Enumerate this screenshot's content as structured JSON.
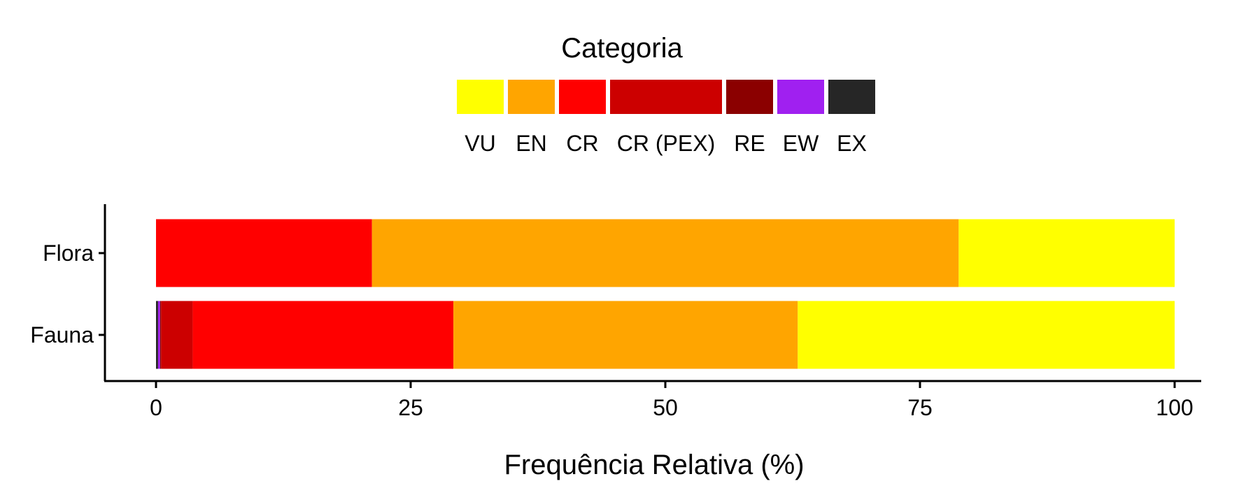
{
  "chart_data": {
    "type": "bar",
    "orientation": "horizontal",
    "stacked": true,
    "xlabel": "Frequência Relativa (%)",
    "ylabel": "",
    "xlim": [
      -5,
      103
    ],
    "xticks": [
      0,
      25,
      50,
      75,
      100
    ],
    "grid": false,
    "legend": {
      "title": "Categoria",
      "placement": "top-center"
    },
    "categories": [
      "Fauna",
      "Flora"
    ],
    "series": [
      {
        "name": "VU",
        "color": "#FFFF00",
        "values": [
          37.0,
          21.2
        ]
      },
      {
        "name": "EN",
        "color": "#FFA500",
        "values": [
          33.8,
          57.6
        ]
      },
      {
        "name": "CR",
        "color": "#FF0000",
        "values": [
          25.6,
          21.2
        ]
      },
      {
        "name": "CR (PEX)",
        "color": "#CC0000",
        "values": [
          3.1,
          0
        ]
      },
      {
        "name": "RE",
        "color": "#8B0000",
        "values": [
          0.1,
          0
        ]
      },
      {
        "name": "EW",
        "color": "#A020F0",
        "values": [
          0.2,
          0
        ]
      },
      {
        "name": "EX",
        "color": "#262626",
        "values": [
          0.2,
          0
        ]
      }
    ]
  }
}
